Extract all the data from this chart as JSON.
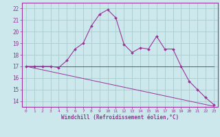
{
  "title": "",
  "xlabel": "Windchill (Refroidissement éolien,°C)",
  "bg_color": "#cce8ec",
  "grid_color": "#aacccc",
  "line_color": "#993399",
  "x": [
    0,
    1,
    2,
    3,
    4,
    5,
    6,
    7,
    8,
    9,
    10,
    11,
    12,
    13,
    14,
    15,
    16,
    17,
    18,
    19,
    20,
    21,
    22,
    23
  ],
  "temp_curve": [
    17.0,
    17.0,
    17.0,
    17.0,
    16.9,
    17.5,
    18.5,
    19.0,
    20.5,
    21.5,
    21.9,
    21.2,
    18.9,
    18.2,
    18.6,
    18.5,
    19.6,
    18.5,
    18.5,
    17.0,
    15.7,
    15.0,
    14.3,
    13.7
  ],
  "flat_line": [
    17.0,
    17.0,
    17.0,
    17.0,
    17.0,
    17.0,
    17.0,
    17.0,
    17.0,
    17.0,
    17.0,
    17.0,
    17.0,
    17.0,
    17.0,
    17.0,
    17.0,
    17.0,
    17.0,
    17.0,
    17.0,
    17.0,
    17.0,
    17.0
  ],
  "decline_line": [
    17.0,
    16.85,
    16.7,
    16.55,
    16.4,
    16.25,
    16.1,
    15.95,
    15.8,
    15.65,
    15.5,
    15.35,
    15.2,
    15.05,
    14.9,
    14.75,
    14.6,
    14.45,
    14.3,
    14.15,
    14.0,
    13.85,
    13.7,
    13.55
  ],
  "ylim": [
    13.5,
    22.5
  ],
  "xlim": [
    -0.5,
    23.5
  ],
  "yticks": [
    14,
    15,
    16,
    17,
    18,
    19,
    20,
    21,
    22
  ],
  "xticks": [
    0,
    1,
    2,
    3,
    4,
    5,
    6,
    7,
    8,
    9,
    10,
    11,
    12,
    13,
    14,
    15,
    16,
    17,
    18,
    19,
    20,
    21,
    22,
    23
  ]
}
